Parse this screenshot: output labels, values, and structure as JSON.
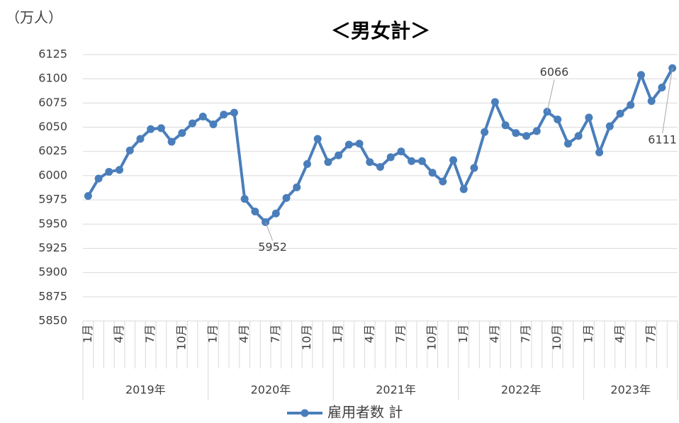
{
  "chart_data": {
    "type": "line",
    "title": "＜男女計＞",
    "y_label": "（万人）",
    "categories": [
      "1月",
      null,
      null,
      "4月",
      null,
      null,
      "7月",
      null,
      null,
      "10月",
      null,
      null,
      "1月",
      null,
      null,
      "4月",
      null,
      null,
      "7月",
      null,
      null,
      "10月",
      null,
      null,
      "1月",
      null,
      null,
      "4月",
      null,
      null,
      "7月",
      null,
      null,
      "10月",
      null,
      null,
      "1月",
      null,
      null,
      "4月",
      null,
      null,
      "7月",
      null,
      null,
      "10月",
      null,
      null,
      "1月",
      null,
      null,
      "4月",
      null,
      null,
      "7月",
      null,
      null
    ],
    "x_groups": [
      "2019年",
      "2020年",
      "2021年",
      "2022年",
      "2023年"
    ],
    "series": [
      {
        "name": "雇用者数 計",
        "color": "#4a7ebb",
        "values": [
          5979,
          5997,
          6004,
          6006,
          6026,
          6038,
          6048,
          6049,
          6035,
          6044,
          6054,
          6061,
          6053,
          6063,
          6065,
          5976,
          5963,
          5952,
          5961,
          5977,
          5988,
          6012,
          6038,
          6014,
          6021,
          6032,
          6033,
          6014,
          6009,
          6019,
          6025,
          6015,
          6015,
          6003,
          5994,
          6016,
          5986,
          6008,
          6045,
          6076,
          6052,
          6044,
          6041,
          6046,
          6066,
          6058,
          6033,
          6041,
          6060,
          6024,
          6051,
          6064,
          6073,
          6104,
          6077,
          6091,
          6111
        ]
      }
    ],
    "labeled_points": [
      17,
      44,
      56
    ],
    "ylim": [
      5850,
      6125
    ],
    "yticks": [
      5850,
      5875,
      5900,
      5925,
      5950,
      5975,
      6000,
      6025,
      6050,
      6075,
      6100,
      6125
    ],
    "grid": true
  }
}
